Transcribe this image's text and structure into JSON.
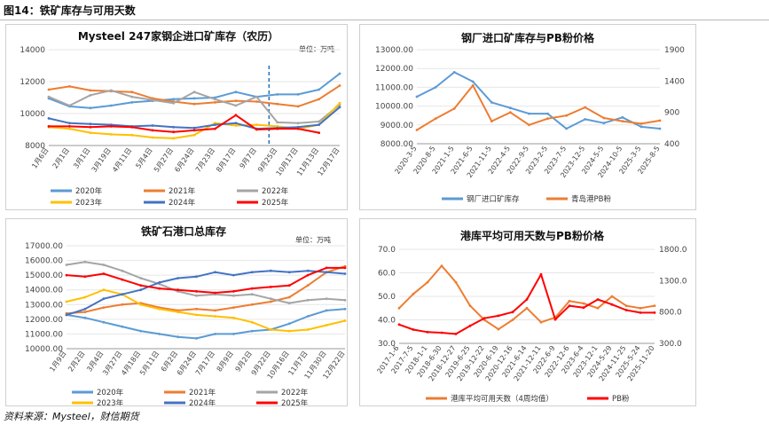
{
  "header": {
    "title": "图14：铁矿库存与可用天数"
  },
  "footer": {
    "source": "资料来源：Mysteel，财信期货"
  },
  "chart_data": [
    {
      "type": "line",
      "title": "Mysteel 247家钢企进口矿库存（农历）",
      "unit_label": "单位：万吨",
      "ylim": [
        8000,
        14000
      ],
      "yticks": [
        "14000",
        "12000",
        "10000",
        "8000"
      ],
      "categories": [
        "1月6日",
        "2月1日",
        "3月1日",
        "3月19日",
        "4月11日",
        "5月4日",
        "5月27日",
        "6月24日",
        "7月23日",
        "8月17日",
        "9月7日",
        "9月25日",
        "10月17日",
        "11月13日",
        "12月17日"
      ],
      "marker_index": 10.6,
      "legend_position": "bottom",
      "series": [
        {
          "name": "2020年",
          "color": "#5b9bd5",
          "values": [
            10950,
            10450,
            10350,
            10500,
            10700,
            10800,
            10900,
            10950,
            11000,
            11350,
            11050,
            11200,
            11200,
            11500,
            12500
          ]
        },
        {
          "name": "2021年",
          "color": "#ed7d31",
          "values": [
            11500,
            11700,
            11450,
            11400,
            11350,
            10950,
            10750,
            10600,
            10700,
            10800,
            10750,
            10600,
            10450,
            10900,
            11750
          ]
        },
        {
          "name": "2022年",
          "color": "#a5a5a5",
          "values": [
            11050,
            10500,
            11150,
            11450,
            11050,
            10850,
            10650,
            11350,
            10900,
            10500,
            11050,
            9450,
            9400,
            9500,
            10550
          ]
        },
        {
          "name": "2023年",
          "color": "#ffc000",
          "values": [
            9150,
            9050,
            8800,
            8700,
            8650,
            8500,
            8450,
            8650,
            9400,
            9250,
            9300,
            9200,
            9050,
            9300,
            10650
          ]
        },
        {
          "name": "2024年",
          "color": "#4472c4",
          "values": [
            9700,
            9400,
            9350,
            9300,
            9200,
            9250,
            9150,
            9100,
            9300,
            9400,
            9050,
            9100,
            9150,
            9300,
            10400
          ]
        },
        {
          "name": "2025年",
          "color": "#ff0000",
          "values": [
            9200,
            9200,
            9150,
            9200,
            9150,
            8950,
            8850,
            8950,
            9050,
            9900,
            9000,
            9050,
            9050,
            8800,
            null
          ]
        }
      ]
    },
    {
      "type": "line",
      "title": "钢厂进口矿库存与PB粉价格",
      "ylim": [
        8000,
        13000
      ],
      "y2lim": [
        400,
        1900
      ],
      "yticks": [
        "13000.00",
        "12000.00",
        "11000.00",
        "10000.00",
        "9000.00",
        "8000.00"
      ],
      "y2ticks": [
        "1900",
        "1400",
        "900",
        "400"
      ],
      "categories": [
        "2020-3-5",
        "2020-8-5",
        "2021-1-5",
        "2021-6-5",
        "2021-11-5",
        "2022-4-5",
        "2022-9-5",
        "2023-2-5",
        "2023-7-5",
        "2023-12-5",
        "2024-5-5",
        "2024-10-5",
        "2025-3-5",
        "2025-8-5"
      ],
      "legend_position": "bottom",
      "series": [
        {
          "name": "钢厂进口矿库存",
          "axis": "left",
          "color": "#5b9bd5",
          "values": [
            10500,
            11000,
            11800,
            11300,
            10200,
            9900,
            9600,
            9600,
            8800,
            9300,
            9100,
            9400,
            8900,
            8800
          ]
        },
        {
          "name": "青岛港PB粉",
          "axis": "right",
          "color": "#ed7d31",
          "values": [
            620,
            800,
            960,
            1330,
            760,
            900,
            700,
            800,
            850,
            980,
            810,
            760,
            720,
            770
          ]
        }
      ]
    },
    {
      "type": "line",
      "title": "铁矿石港口总库存",
      "unit_label": "单位：万吨",
      "ylim": [
        10000,
        17000
      ],
      "yticks": [
        "17000.00",
        "16000.00",
        "15000.00",
        "14000.00",
        "13000.00",
        "12000.00",
        "11000.00",
        "10000.00"
      ],
      "categories": [
        "1月9日",
        "2月2日",
        "3月4日",
        "3月27日",
        "4月18日",
        "5月11日",
        "6月2日",
        "6月24日",
        "7月17日",
        "8月9日",
        "9月2日",
        "9月22日",
        "10月16日",
        "11月7日",
        "11月30日",
        "12月22日"
      ],
      "legend_position": "bottom",
      "series": [
        {
          "name": "2020年",
          "color": "#5b9bd5",
          "values": [
            12300,
            12100,
            11800,
            11500,
            11200,
            11000,
            10800,
            10700,
            11000,
            11000,
            11200,
            11300,
            11700,
            12200,
            12600,
            12700
          ]
        },
        {
          "name": "2021年",
          "color": "#ed7d31",
          "values": [
            12400,
            12500,
            12800,
            13000,
            13100,
            12800,
            12600,
            12700,
            12600,
            12800,
            13000,
            13200,
            13500,
            14300,
            15200,
            15600
          ]
        },
        {
          "name": "2022年",
          "color": "#a5a5a5",
          "values": [
            15700,
            15900,
            15700,
            15300,
            14800,
            14400,
            13900,
            13600,
            13700,
            13600,
            13700,
            13400,
            13100,
            13300,
            13400,
            13300
          ]
        },
        {
          "name": "2023年",
          "color": "#ffc000",
          "values": [
            13200,
            13500,
            14000,
            13700,
            13000,
            12700,
            12500,
            12300,
            12200,
            12100,
            11800,
            11300,
            11200,
            11300,
            11600,
            11900
          ]
        },
        {
          "name": "2024年",
          "color": "#4472c4",
          "values": [
            12300,
            12700,
            13400,
            13700,
            14000,
            14500,
            14800,
            14900,
            15200,
            15000,
            15200,
            15300,
            15200,
            15300,
            15200,
            15100
          ]
        },
        {
          "name": "2025年",
          "color": "#ff0000",
          "values": [
            15000,
            14900,
            15100,
            14700,
            14300,
            14100,
            14000,
            13900,
            13800,
            13900,
            14100,
            14200,
            14300,
            15000,
            15500,
            15500
          ]
        }
      ]
    },
    {
      "type": "line",
      "title": "港库平均可用天数与PB粉价格",
      "ylim": [
        30,
        70
      ],
      "y2lim": [
        300,
        1800
      ],
      "yticks": [
        "70.0",
        "60.0",
        "50.0",
        "40.0",
        "30.0"
      ],
      "y2ticks": [
        "1800.0",
        "1300.0",
        "800.0",
        "300.0"
      ],
      "categories": [
        "2017-1-6",
        "2017-7-5",
        "2018-1-1",
        "2018-6-30",
        "2018-12-27",
        "2019-6-25",
        "2019-12-22",
        "2020-6-19",
        "2020-12-16",
        "2021-6-14",
        "2021-12-11",
        "2022-6-9",
        "2022-12-6",
        "2023-6-4",
        "2023-12-1",
        "2024-5-29",
        "2024-11-25",
        "2025-5-24",
        "2025-11-20"
      ],
      "legend_position": "bottom",
      "series": [
        {
          "name": "港库平均可用天数（4周均值）",
          "axis": "left",
          "color": "#ed7d31",
          "values": [
            45,
            51,
            56,
            63,
            56,
            46,
            40,
            36,
            40,
            45,
            39,
            41,
            48,
            47,
            45,
            50,
            46,
            45,
            46
          ]
        },
        {
          "name": "PB粉",
          "axis": "right",
          "color": "#ff0000",
          "values": [
            600,
            520,
            480,
            470,
            450,
            580,
            700,
            740,
            800,
            1000,
            1400,
            680,
            900,
            870,
            1000,
            920,
            830,
            790,
            790
          ]
        }
      ]
    }
  ]
}
